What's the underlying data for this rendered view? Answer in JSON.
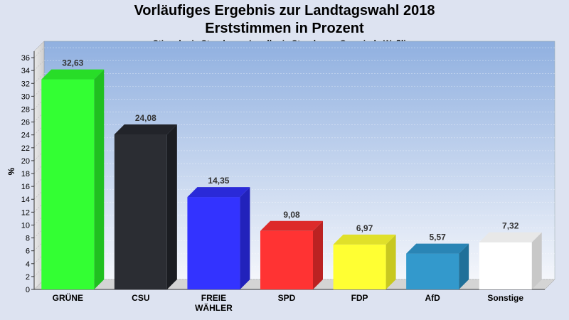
{
  "header": {
    "title": "Vorläufiges Ergebnis zur Landtagswahl 2018",
    "subtitle": "Erststimmen in Prozent",
    "region": "Stimmkreis Starnberg - Landkreis Starnberg - Gemeinde Weßling"
  },
  "chart_data": {
    "type": "bar",
    "title": "Vorläufiges Ergebnis zur Landtagswahl 2018",
    "subtitle": "Erststimmen in Prozent",
    "ylabel": "%",
    "xlabel": "",
    "ylim": [
      0,
      37
    ],
    "yticks": [
      "0",
      "2",
      "4",
      "6",
      "8",
      "10",
      "12",
      "14",
      "16",
      "18",
      "20",
      "22",
      "24",
      "26",
      "28",
      "30",
      "32",
      "34",
      "36"
    ],
    "grid": true,
    "categories": [
      "GRÜNE",
      "CSU",
      "FREIE WÄHLER",
      "SPD",
      "FDP",
      "AfD",
      "Sonstige"
    ],
    "category_lines": [
      [
        "GRÜNE"
      ],
      [
        "CSU"
      ],
      [
        "FREIE",
        "WÄHLER"
      ],
      [
        "SPD"
      ],
      [
        "FDP"
      ],
      [
        "AfD"
      ],
      [
        "Sonstige"
      ]
    ],
    "values": [
      32.63,
      24.08,
      14.35,
      9.08,
      6.97,
      5.57,
      7.32
    ],
    "value_labels": [
      "32,63",
      "24,08",
      "14,35",
      "9,08",
      "6,97",
      "5,57",
      "7,32"
    ],
    "colors": [
      "#33ff33",
      "#2b2d33",
      "#3333ff",
      "#ff3333",
      "#ffff33",
      "#3399cc",
      "#ffffff"
    ],
    "side_colors": [
      "#20c020",
      "#1b1d22",
      "#2222bb",
      "#bb2222",
      "#c8c820",
      "#207099",
      "#c8c8c8"
    ],
    "top_colors": [
      "#28dd28",
      "#22242a",
      "#2a2ad8",
      "#dd2a2a",
      "#e0e02a",
      "#2a85b5",
      "#e8e8e8"
    ]
  }
}
